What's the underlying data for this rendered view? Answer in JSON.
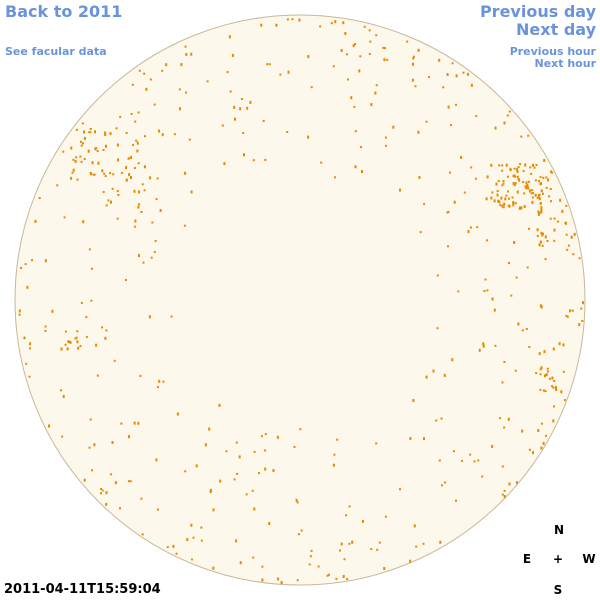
{
  "nav": {
    "back_year": "Back to 2011",
    "see_data": "See facular data",
    "previous_day": "Previous day",
    "next_day": "Next day",
    "previous_hour": "Previous hour",
    "next_hour": "Next hour"
  },
  "timestamp": "2011-04-11T15:59:04",
  "compass": {
    "north": "N",
    "east": "E",
    "center": "+",
    "west": "W",
    "south": "S"
  }
}
